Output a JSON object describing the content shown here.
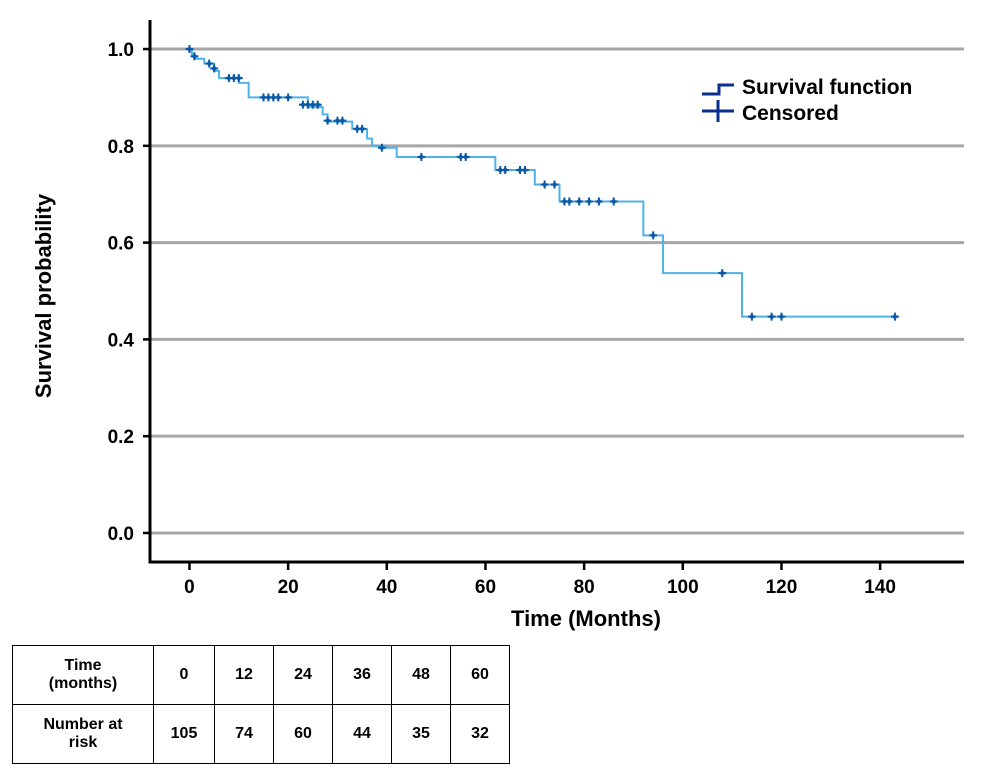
{
  "chart_data": {
    "type": "line",
    "subtype": "kaplan-meier",
    "xlabel": "Time (Months)",
    "ylabel": "Survival probability",
    "xlim": [
      -8,
      157
    ],
    "ylim": [
      -0.06,
      1.06
    ],
    "x_ticks": [
      0,
      20,
      40,
      60,
      80,
      100,
      120,
      140
    ],
    "x_tick_labels": [
      "0",
      "20",
      "40",
      "60",
      "80",
      "100",
      "120",
      "140"
    ],
    "y_ticks": [
      0.0,
      0.2,
      0.4,
      0.6,
      0.8,
      1.0
    ],
    "y_tick_labels": [
      "0.0",
      "0.2",
      "0.4",
      "0.6",
      "0.8",
      "1.0"
    ],
    "grid": "horizontal",
    "legend_position": "top-right",
    "series": [
      {
        "name": "Survival function",
        "color": "#4fb3e8",
        "steps": [
          [
            0,
            1.0
          ],
          [
            0.5,
            0.99
          ],
          [
            1,
            0.98
          ],
          [
            3,
            0.97
          ],
          [
            5,
            0.955
          ],
          [
            6,
            0.94
          ],
          [
            10,
            0.93
          ],
          [
            12,
            0.9
          ],
          [
            24,
            0.88
          ],
          [
            27,
            0.865
          ],
          [
            28,
            0.85
          ],
          [
            33,
            0.835
          ],
          [
            36,
            0.815
          ],
          [
            37,
            0.8
          ],
          [
            40,
            0.796
          ],
          [
            42,
            0.777
          ],
          [
            62,
            0.75
          ],
          [
            70,
            0.72
          ],
          [
            75,
            0.685
          ],
          [
            92,
            0.615
          ],
          [
            96,
            0.537
          ],
          [
            112,
            0.447
          ],
          [
            143,
            0.447
          ]
        ]
      },
      {
        "name": "Censored",
        "color": "#0a5aa8",
        "points": [
          [
            0,
            1.0
          ],
          [
            1,
            0.985
          ],
          [
            4,
            0.97
          ],
          [
            5,
            0.96
          ],
          [
            8,
            0.94
          ],
          [
            9,
            0.94
          ],
          [
            10,
            0.94
          ],
          [
            15,
            0.9
          ],
          [
            16,
            0.9
          ],
          [
            17,
            0.9
          ],
          [
            18,
            0.9
          ],
          [
            20,
            0.9
          ],
          [
            23,
            0.885
          ],
          [
            24,
            0.885
          ],
          [
            25,
            0.885
          ],
          [
            26,
            0.885
          ],
          [
            28,
            0.852
          ],
          [
            30,
            0.852
          ],
          [
            31,
            0.852
          ],
          [
            34,
            0.835
          ],
          [
            35,
            0.835
          ],
          [
            39,
            0.796
          ],
          [
            47,
            0.777
          ],
          [
            55,
            0.777
          ],
          [
            56,
            0.777
          ],
          [
            63,
            0.75
          ],
          [
            64,
            0.75
          ],
          [
            67,
            0.75
          ],
          [
            68,
            0.75
          ],
          [
            72,
            0.72
          ],
          [
            74,
            0.72
          ],
          [
            76,
            0.685
          ],
          [
            77,
            0.685
          ],
          [
            79,
            0.685
          ],
          [
            81,
            0.685
          ],
          [
            83,
            0.685
          ],
          [
            86,
            0.685
          ],
          [
            94,
            0.615
          ],
          [
            108,
            0.537
          ],
          [
            114,
            0.447
          ],
          [
            118,
            0.447
          ],
          [
            120,
            0.447
          ],
          [
            143,
            0.447
          ]
        ]
      }
    ]
  },
  "legend": {
    "survival_label": "Survival function",
    "censored_label": "Censored"
  },
  "risk_table": {
    "row1_header": [
      "Time",
      "(months)"
    ],
    "row2_header": [
      "Number at",
      "risk"
    ],
    "times": [
      "0",
      "12",
      "24",
      "36",
      "48",
      "60"
    ],
    "at_risk": [
      "105",
      "74",
      "60",
      "44",
      "35",
      "32"
    ]
  }
}
